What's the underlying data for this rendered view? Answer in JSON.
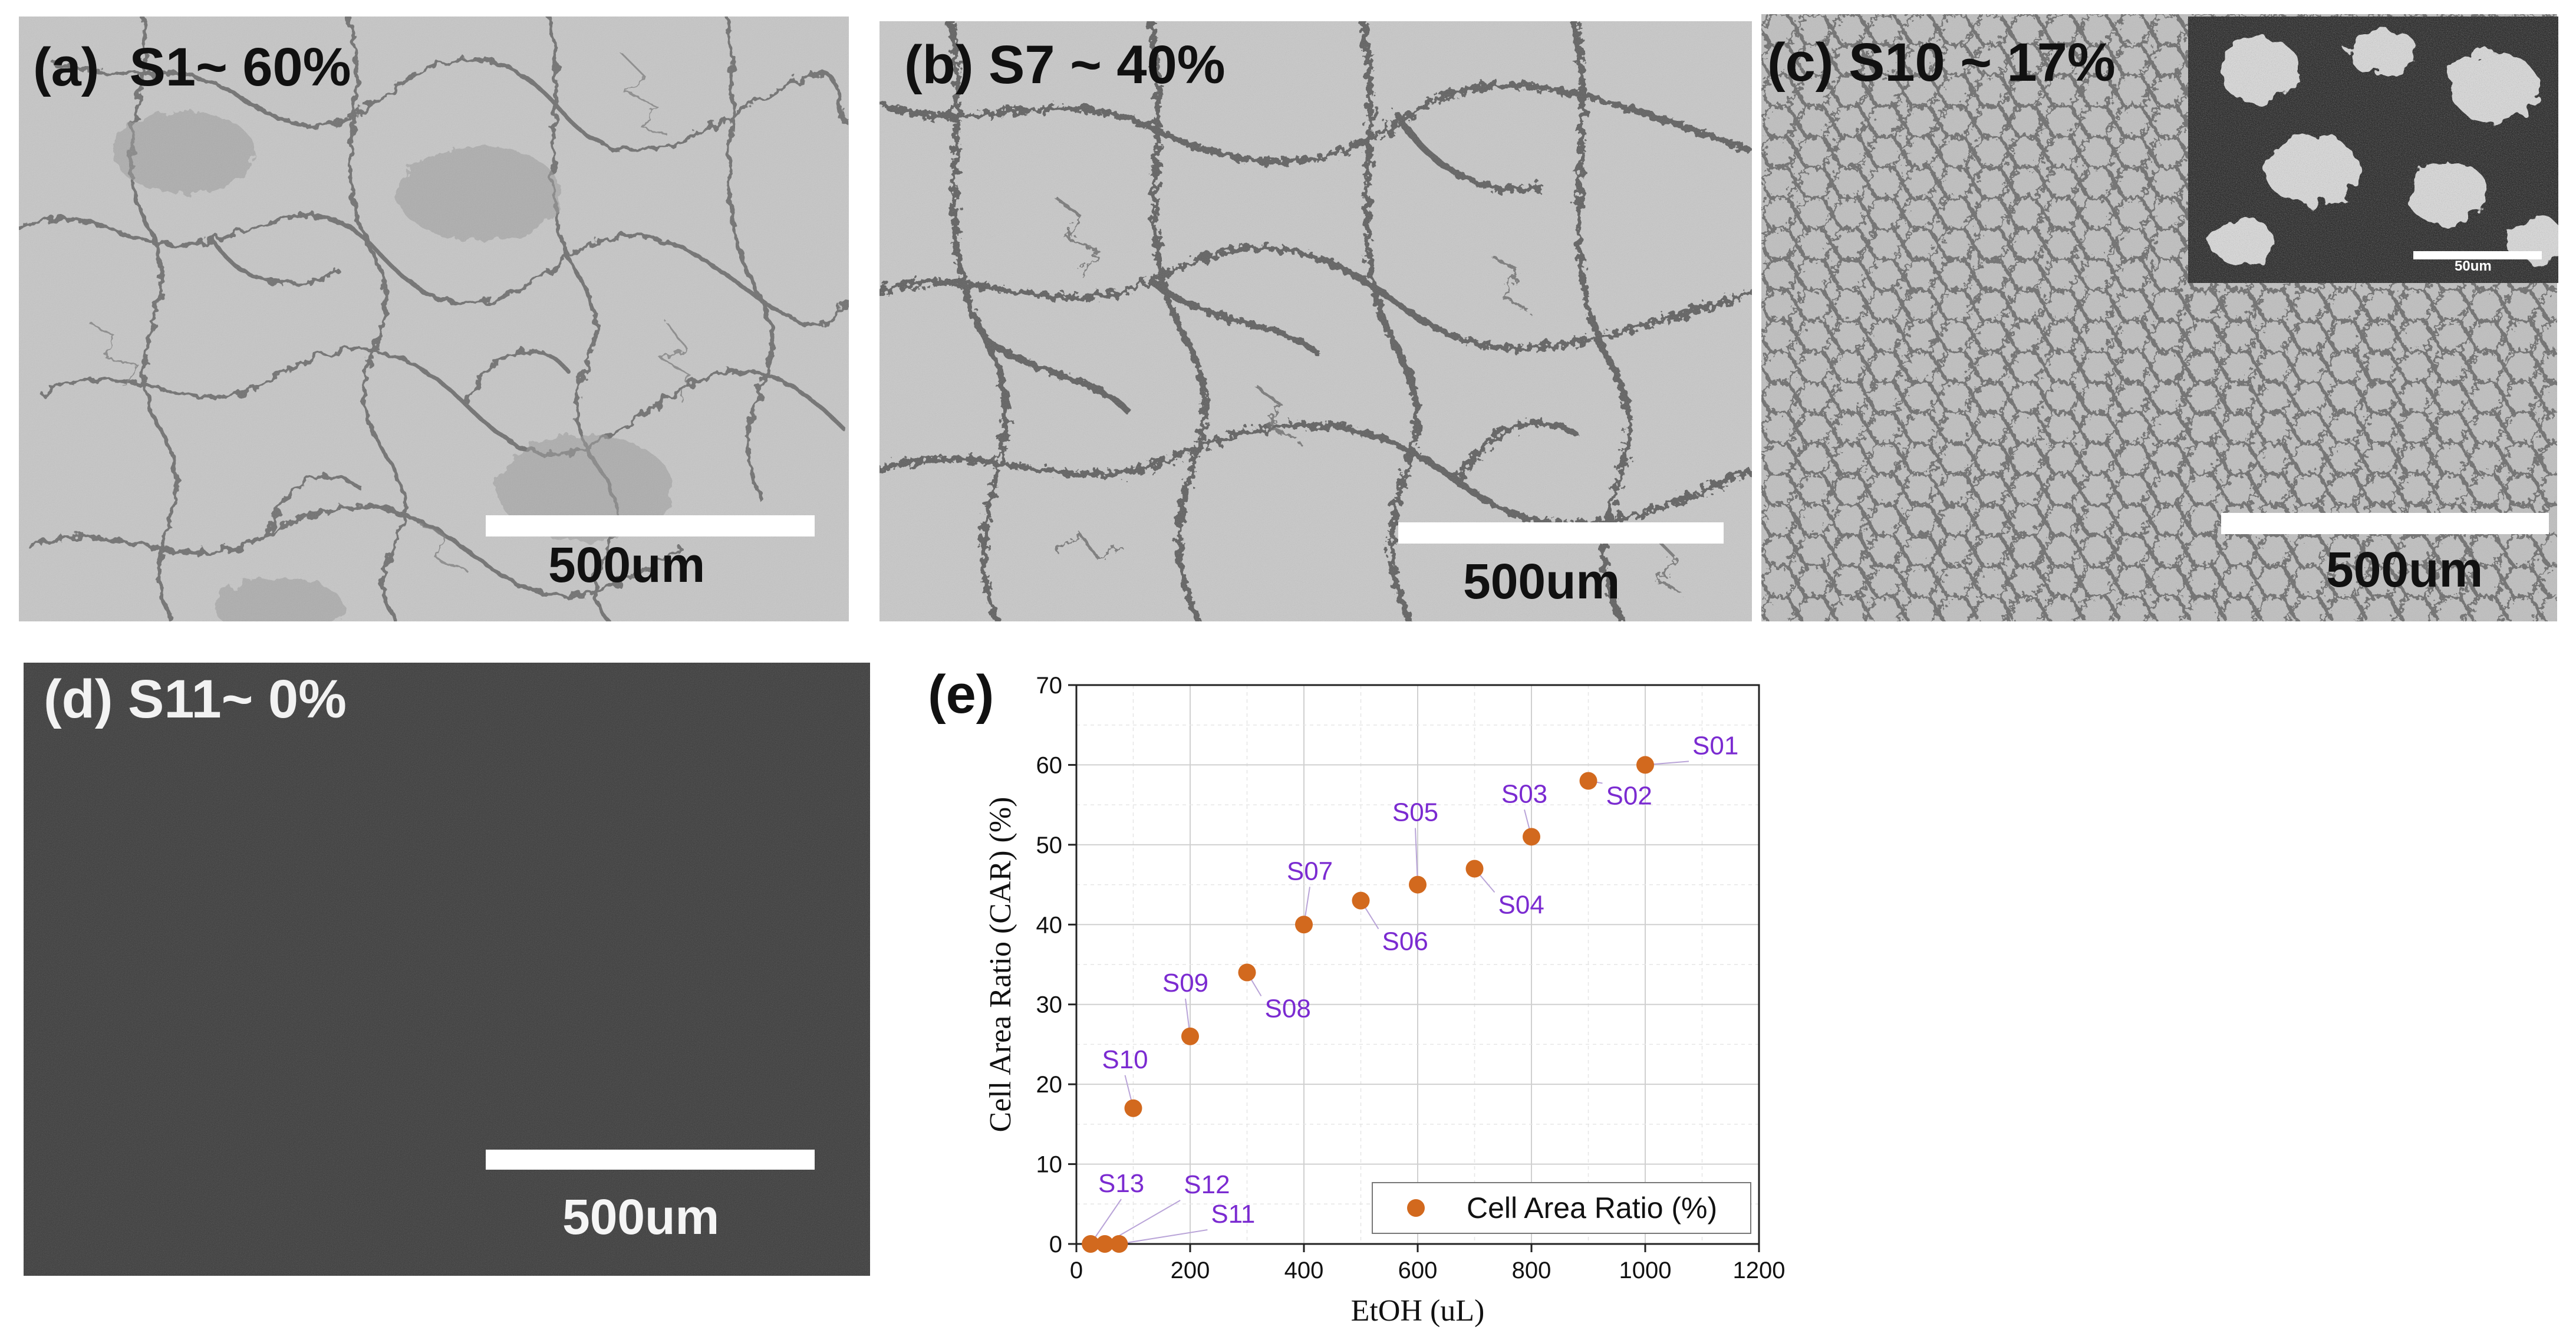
{
  "panels": {
    "a": {
      "label": "(a)  S1~ 60%",
      "scale_text": "500um"
    },
    "b": {
      "label": "(b) S7 ~ 40%",
      "scale_text": "500um"
    },
    "c": {
      "label": "(c) S10 ~ 17%",
      "scale_text": "500um",
      "inset_scale_text": "50um"
    },
    "d": {
      "label": "(d) S11~ 0%",
      "scale_text": "500um"
    },
    "e": {
      "label": "(e)"
    }
  },
  "colors": {
    "marker": "#D2691E",
    "annotation": "#7B2BD1",
    "grid": "#d0d0d0",
    "sem_light": "#c4c4c4",
    "sem_dark": "#3a3a3a"
  },
  "chart_data": {
    "type": "scatter",
    "title": "",
    "xlabel": "EtOH (uL)",
    "ylabel": "Cell Area Ratio (CAR) (%)",
    "xlim": [
      0,
      1200
    ],
    "ylim": [
      0,
      70
    ],
    "xticks": [
      0,
      200,
      400,
      600,
      800,
      1000,
      1200
    ],
    "yticks": [
      0,
      10,
      20,
      30,
      40,
      50,
      60,
      70
    ],
    "legend": {
      "label": "Cell Area Ratio (%)",
      "position": "bottom-right"
    },
    "series": [
      {
        "name": "Cell Area Ratio (%)",
        "points": [
          {
            "x": 1000,
            "y": 60,
            "label": "S01"
          },
          {
            "x": 900,
            "y": 58,
            "label": "S02"
          },
          {
            "x": 800,
            "y": 51,
            "label": "S03"
          },
          {
            "x": 700,
            "y": 47,
            "label": "S04"
          },
          {
            "x": 600,
            "y": 45,
            "label": "S05"
          },
          {
            "x": 500,
            "y": 43,
            "label": "S06"
          },
          {
            "x": 400,
            "y": 40,
            "label": "S07"
          },
          {
            "x": 300,
            "y": 34,
            "label": "S08"
          },
          {
            "x": 200,
            "y": 26,
            "label": "S09"
          },
          {
            "x": 100,
            "y": 17,
            "label": "S10"
          },
          {
            "x": 75,
            "y": 0,
            "label": "S11"
          },
          {
            "x": 50,
            "y": 0,
            "label": "S12"
          },
          {
            "x": 25,
            "y": 0,
            "label": "S13"
          }
        ]
      }
    ]
  }
}
